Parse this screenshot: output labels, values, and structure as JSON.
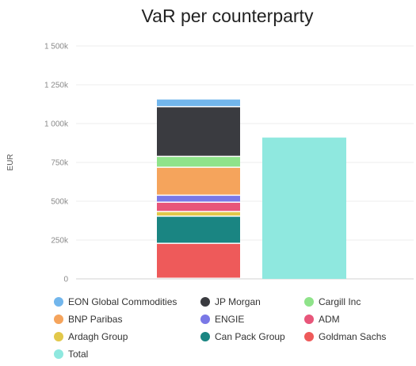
{
  "chart_data": {
    "type": "bar",
    "stacked": true,
    "title": "VaR per counterparty",
    "ylabel": "EUR",
    "xlabel": "",
    "ylim": [
      0,
      1500000
    ],
    "yticks": [
      0,
      250000,
      500000,
      750000,
      1000000,
      1250000,
      1500000
    ],
    "ytick_labels": [
      "0",
      "250k",
      "500k",
      "750k",
      "1 000k",
      "1 250k",
      "1 500k"
    ],
    "grid": true,
    "legend_position": "bottom",
    "stack_series": [
      {
        "name": "Goldman Sachs",
        "value": 225000,
        "color": "#ee5a5a"
      },
      {
        "name": "Can Pack Group",
        "value": 175000,
        "color": "#1a8582"
      },
      {
        "name": "Ardagh Group",
        "value": 30000,
        "color": "#e2c84a"
      },
      {
        "name": "ADM",
        "value": 60000,
        "color": "#e8567a"
      },
      {
        "name": "ENGIE",
        "value": 45000,
        "color": "#7a78e6"
      },
      {
        "name": "BNP Paribas",
        "value": 180000,
        "color": "#f5a45c"
      },
      {
        "name": "Cargill Inc",
        "value": 70000,
        "color": "#8fe38a"
      },
      {
        "name": "JP Morgan",
        "value": 320000,
        "color": "#3a3b40"
      },
      {
        "name": "EON Global Commodities",
        "value": 50000,
        "color": "#72b6ec"
      }
    ],
    "total": {
      "name": "Total",
      "value": 910000,
      "color": "#8fe8df"
    },
    "legend": [
      {
        "name": "EON Global Commodities",
        "color": "#72b6ec"
      },
      {
        "name": "JP Morgan",
        "color": "#3a3b40"
      },
      {
        "name": "Cargill Inc",
        "color": "#8fe38a"
      },
      {
        "name": "BNP Paribas",
        "color": "#f5a45c"
      },
      {
        "name": "ENGIE",
        "color": "#7a78e6"
      },
      {
        "name": "ADM",
        "color": "#e8567a"
      },
      {
        "name": "Ardagh Group",
        "color": "#e2c84a"
      },
      {
        "name": "Can Pack Group",
        "color": "#1a8582"
      },
      {
        "name": "Goldman Sachs",
        "color": "#ee5a5a"
      },
      {
        "name": "Total",
        "color": "#8fe8df"
      }
    ]
  }
}
